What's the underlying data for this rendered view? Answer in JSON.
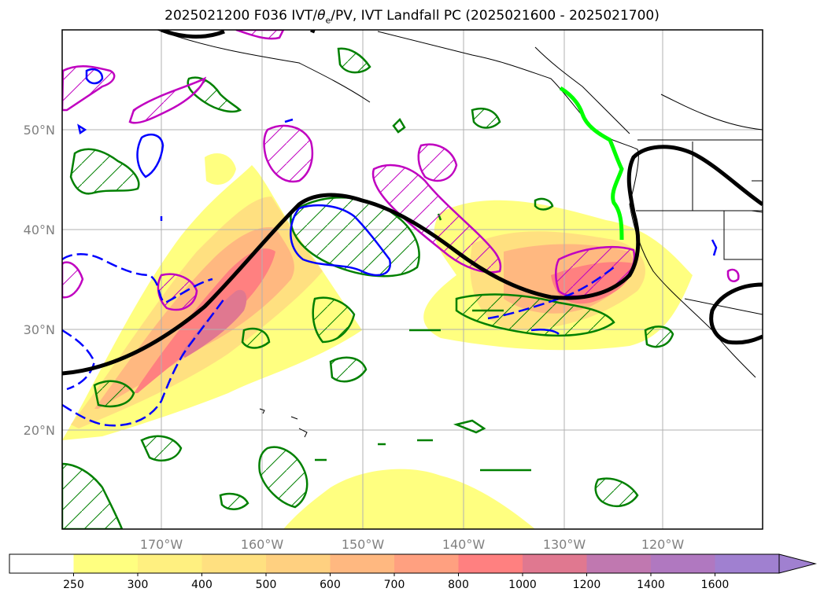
{
  "title": {
    "prefix": "2025021200 F036 IVT/",
    "theta": "θ",
    "theta_sub": "e",
    "suffix": "/PV, IVT Landfall PC (2025021600 - 2025021700)"
  },
  "map": {
    "lon_range": [
      -180,
      -110
    ],
    "lat_range": [
      10,
      60
    ],
    "lat_labels": [
      "50°N",
      "40°N",
      "30°N",
      "20°N"
    ],
    "lat_values": [
      50,
      40,
      30,
      20
    ],
    "lon_labels": [
      "170°W",
      "160°W",
      "150°W",
      "140°W",
      "130°W",
      "120°W"
    ],
    "lon_values": [
      -170,
      -160,
      -150,
      -140,
      -130,
      -120
    ],
    "grid": true,
    "fields": {
      "ivt_fill": "IVT",
      "theta_e_contour": "θe",
      "pv_contours": "PV",
      "landfall_line_color": "#00ff00"
    }
  },
  "colorbar": {
    "levels": [
      "250",
      "300",
      "400",
      "500",
      "600",
      "700",
      "800",
      "1000",
      "1200",
      "1400",
      "1600"
    ],
    "colors": [
      "#ffffff",
      "#ffff80",
      "#fff080",
      "#ffe080",
      "#ffd080",
      "#ffb880",
      "#ffa080",
      "#ff8080",
      "#e07890",
      "#c078b0",
      "#b078c0",
      "#a080d0"
    ],
    "extend": "max"
  },
  "colors": {
    "pv_green": "#008000",
    "pv_magenta": "#c000c0",
    "pv_blue": "#0000ff",
    "theta_black": "#000000",
    "landfall_green": "#00ff00"
  }
}
